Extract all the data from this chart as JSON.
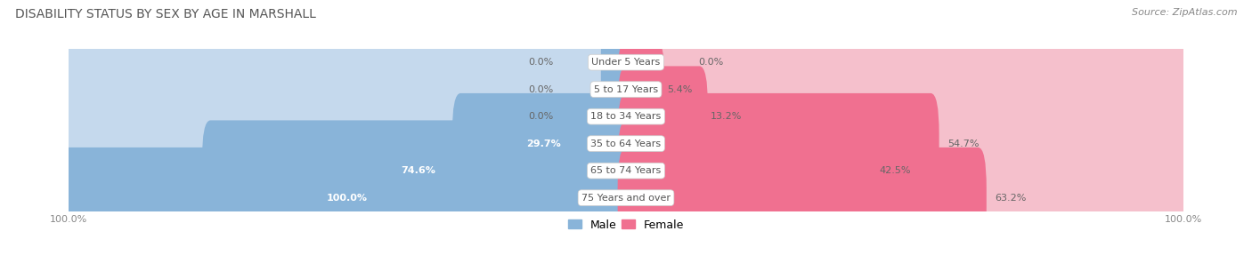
{
  "title": "DISABILITY STATUS BY SEX BY AGE IN MARSHALL",
  "source": "Source: ZipAtlas.com",
  "categories": [
    "Under 5 Years",
    "5 to 17 Years",
    "18 to 34 Years",
    "35 to 64 Years",
    "65 to 74 Years",
    "75 Years and over"
  ],
  "male_values": [
    0.0,
    0.0,
    0.0,
    29.7,
    74.6,
    100.0
  ],
  "female_values": [
    0.0,
    5.4,
    13.2,
    54.7,
    42.5,
    63.2
  ],
  "male_color": "#89b4d9",
  "female_color": "#f07090",
  "male_color_light": "#c5d9ed",
  "female_color_light": "#f5c0cc",
  "max_value": 100.0,
  "title_fontsize": 10,
  "label_fontsize": 8,
  "category_fontsize": 8,
  "legend_fontsize": 9,
  "row_colors": [
    "#efefef",
    "#e4e4e4",
    "#efefef",
    "#e4e4e4",
    "#efefef",
    "#e4e4e4"
  ]
}
